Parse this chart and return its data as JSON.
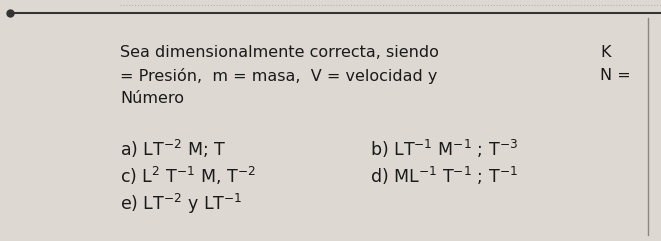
{
  "bg_color": "#ddd9d2",
  "text_color": "#1a1a1a",
  "title_line1_left": "Sea dimensionalmente correcta, siendo",
  "title_line1_right": "K",
  "title_line2_left": "= Presión,  m = masa,  V = velocidad y",
  "title_line2_right": "N =",
  "title_line3": "Número",
  "option_a": "a) LT$^{-2}$ M; T",
  "option_b": "b) LT$^{-1}$ M$^{-1}$ ; T$^{-3}$",
  "option_c": "c) L$^{2}$ T$^{-1}$ M, T$^{-2}$",
  "option_d": "d) ML$^{-1}$ T$^{-1}$ ; T$^{-1}$",
  "option_e": "e) LT$^{-2}$ y LT$^{-1}$",
  "font_size_title": 11.5,
  "font_size_options": 12.5,
  "font_family": "DejaVu Sans"
}
